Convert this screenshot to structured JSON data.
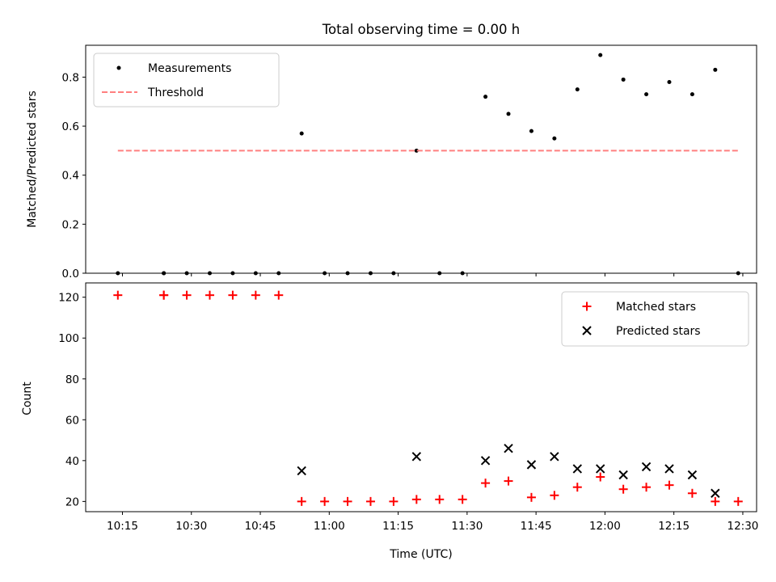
{
  "chart_data": [
    {
      "type": "scatter",
      "title": "Total observing time = 0.00 h",
      "xlabel": "",
      "ylabel": "Matched/Predicted stars",
      "xlim": [
        "10:07",
        "12:33"
      ],
      "ylim": [
        0,
        0.93
      ],
      "yticks": [
        "0.0",
        "0.2",
        "0.4",
        "0.6",
        "0.8"
      ],
      "ytick_values": [
        0,
        0.2,
        0.4,
        0.6,
        0.8
      ],
      "xticks": [
        "10:15",
        "10:30",
        "10:45",
        "11:00",
        "11:15",
        "11:30",
        "11:45",
        "12:00",
        "12:15",
        "12:30"
      ],
      "legend_location": "upper-left",
      "series": [
        {
          "name": "Measurements",
          "marker": "dot",
          "color": "#000000",
          "x": [
            "10:14",
            "10:24",
            "10:24",
            "10:29",
            "10:34",
            "10:39",
            "10:44",
            "10:49",
            "10:54",
            "10:59",
            "11:04",
            "11:09",
            "11:14",
            "11:19",
            "11:24",
            "11:29",
            "11:34",
            "11:39",
            "11:44",
            "11:49",
            "11:54",
            "11:59",
            "12:04",
            "12:09",
            "12:14",
            "12:19",
            "12:24",
            "12:29"
          ],
          "y": [
            0,
            0,
            0,
            0,
            0,
            0,
            0,
            0,
            0.57,
            0,
            0,
            0,
            0,
            0.5,
            0,
            0,
            0.72,
            0.65,
            0.58,
            0.55,
            0.75,
            0.89,
            0.79,
            0.73,
            0.78,
            0.73,
            0.83,
            0
          ]
        },
        {
          "name": "Threshold",
          "style": "dashed",
          "color": "#ff7f7f",
          "x": [
            "10:14",
            "12:29"
          ],
          "y": [
            0.5,
            0.5
          ]
        }
      ]
    },
    {
      "type": "scatter",
      "title": "",
      "xlabel": "Time (UTC)",
      "ylabel": "Count",
      "xlim": [
        "10:07",
        "12:33"
      ],
      "ylim": [
        15,
        127
      ],
      "yticks": [
        "20",
        "40",
        "60",
        "80",
        "100",
        "120"
      ],
      "ytick_values": [
        20,
        40,
        60,
        80,
        100,
        120
      ],
      "xticks": [
        "10:15",
        "10:30",
        "10:45",
        "11:00",
        "11:15",
        "11:30",
        "11:45",
        "12:00",
        "12:15",
        "12:30"
      ],
      "legend_location": "upper-right",
      "series": [
        {
          "name": "Matched stars",
          "marker": "plus",
          "color": "#ff0000",
          "x": [
            "10:14",
            "10:24",
            "10:24",
            "10:29",
            "10:34",
            "10:39",
            "10:44",
            "10:49",
            "10:54",
            "10:59",
            "11:04",
            "11:09",
            "11:14",
            "11:19",
            "11:24",
            "11:29",
            "11:34",
            "11:39",
            "11:44",
            "11:49",
            "11:54",
            "11:59",
            "12:04",
            "12:09",
            "12:14",
            "12:19",
            "12:24",
            "12:29"
          ],
          "y": [
            121,
            121,
            121,
            121,
            121,
            121,
            121,
            121,
            20,
            20,
            20,
            20,
            20,
            21,
            21,
            21,
            29,
            30,
            22,
            23,
            27,
            32,
            26,
            27,
            28,
            24,
            20,
            20
          ]
        },
        {
          "name": "Predicted stars",
          "marker": "x",
          "color": "#000000",
          "x": [
            "10:54",
            "11:19",
            "11:34",
            "11:39",
            "11:44",
            "11:49",
            "11:54",
            "11:59",
            "12:04",
            "12:09",
            "12:14",
            "12:19",
            "12:24"
          ],
          "y": [
            35,
            42,
            40,
            46,
            38,
            42,
            36,
            36,
            33,
            37,
            36,
            33,
            24
          ]
        }
      ]
    }
  ]
}
